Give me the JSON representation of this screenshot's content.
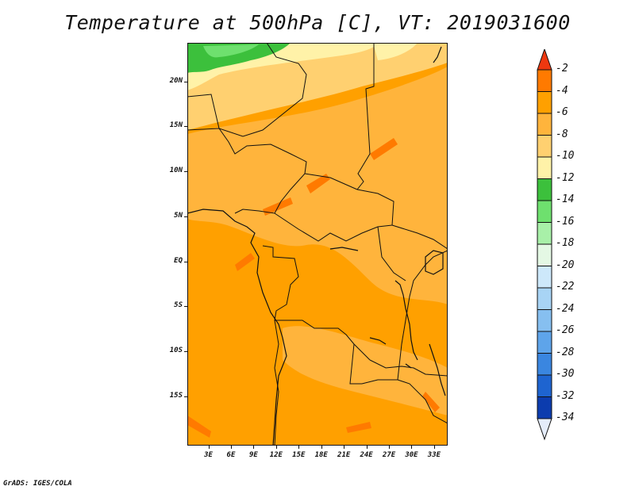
{
  "title": "Temperature at 500hPa [C], VT: 2019031600",
  "footer": "GrADS: IGES/COLA",
  "map": {
    "lat_labels": [
      "20N",
      "15N",
      "10N",
      "5N",
      "EQ",
      "5S",
      "10S",
      "15S"
    ],
    "lat_values": [
      20,
      15,
      10,
      5,
      0,
      -5,
      -10,
      -15
    ],
    "lon_labels": [
      "3E",
      "6E",
      "9E",
      "12E",
      "15E",
      "18E",
      "21E",
      "24E",
      "27E",
      "30E",
      "33E"
    ],
    "lon_values": [
      3,
      6,
      9,
      12,
      15,
      18,
      21,
      24,
      27,
      30,
      33
    ],
    "colors": {
      "band_m4": "#ff7a00",
      "band_m6": "#ffa000",
      "band_m8": "#ffb43c",
      "band_m10": "#ffd070",
      "band_m12": "#fff2a8",
      "band_m14": "#3cc03c",
      "band_m16": "#6ee06e"
    }
  },
  "colorbar": {
    "labels": [
      "-2",
      "-4",
      "-6",
      "-8",
      "-10",
      "-12",
      "-14",
      "-16",
      "-18",
      "-20",
      "-22",
      "-24",
      "-26",
      "-28",
      "-30",
      "-32",
      "-34"
    ],
    "colors": [
      "#ff7a00",
      "#ffa000",
      "#ffb43c",
      "#ffd070",
      "#fff2a8",
      "#3cc03c",
      "#6ee06e",
      "#a8f0a8",
      "#e4f8e4",
      "#cde8fa",
      "#a8d4f5",
      "#86bff0",
      "#5ea4ea",
      "#3a86e0",
      "#1e64d0",
      "#0c3cae",
      "#0a1a78"
    ],
    "top_color": "#ee3810",
    "bottom_color": "#e4ecfa"
  }
}
